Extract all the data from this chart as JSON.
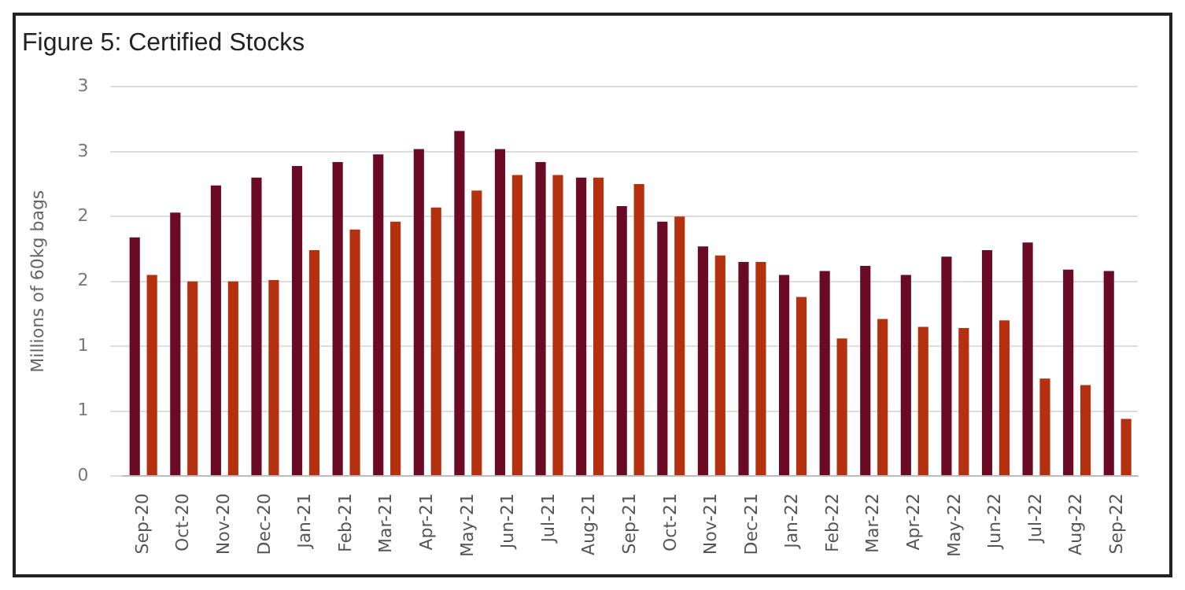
{
  "chart_data": {
    "type": "bar",
    "title": "Figure 5: Certified Stocks",
    "ylabel": "Millions of 60kg bags",
    "categories": [
      "Sep-20",
      "Oct-20",
      "Nov-20",
      "Dec-20",
      "Jan-21",
      "Feb-21",
      "Mar-21",
      "Apr-21",
      "May-21",
      "Jun-21",
      "Jul-21",
      "Aug-21",
      "Sep-21",
      "Oct-21",
      "Nov-21",
      "Dec-21",
      "Jan-22",
      "Feb-22",
      "Mar-22",
      "Apr-22",
      "May-22",
      "Jun-22",
      "Jul-22",
      "Aug-22",
      "Sep-22"
    ],
    "series": [
      {
        "color": "#6b0a24",
        "values": [
          1.84,
          2.03,
          2.24,
          2.3,
          2.39,
          2.42,
          2.48,
          2.52,
          2.66,
          2.52,
          2.42,
          2.3,
          2.08,
          1.96,
          1.77,
          1.65,
          1.55,
          1.58,
          1.62,
          1.55,
          1.69,
          1.74,
          1.8,
          1.59,
          1.58
        ]
      },
      {
        "color": "#b5300e",
        "values": [
          1.55,
          1.5,
          1.5,
          1.51,
          1.74,
          1.9,
          1.96,
          2.07,
          2.2,
          2.32,
          2.32,
          2.3,
          2.25,
          2.0,
          1.7,
          1.65,
          1.38,
          1.06,
          1.21,
          1.15,
          1.14,
          1.2,
          0.75,
          0.7,
          0.44
        ]
      }
    ],
    "ylim": [
      0,
      3
    ],
    "yticks": [
      {
        "value": 0,
        "label": "0"
      },
      {
        "value": 0.5,
        "label": "1"
      },
      {
        "value": 1,
        "label": "1"
      },
      {
        "value": 1.5,
        "label": "2"
      },
      {
        "value": 2,
        "label": "2"
      },
      {
        "value": 2.5,
        "label": "3"
      },
      {
        "value": 3,
        "label": "3"
      }
    ],
    "grid": "y",
    "legend": false
  }
}
